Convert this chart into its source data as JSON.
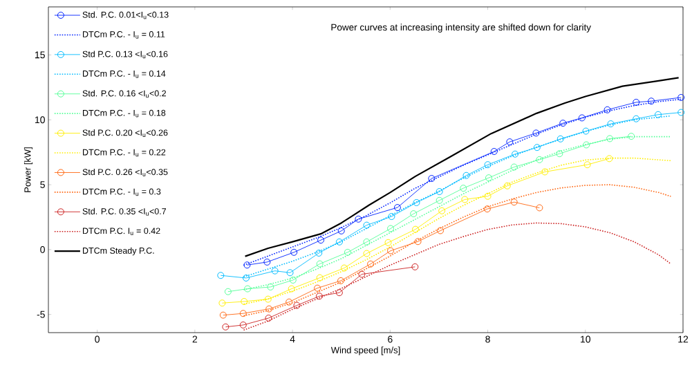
{
  "chart_data": {
    "type": "line",
    "xlabel": "Wind speed [m/s]",
    "ylabel": "Power [kW]",
    "annotations": [
      "Power curves at increasing intensity are shifted down for clarity"
    ],
    "xlim": [
      -1,
      12
    ],
    "ylim": [
      -6.4,
      18.7
    ],
    "xticks": [
      0,
      2,
      4,
      6,
      8,
      10,
      12
    ],
    "yticks": [
      -5,
      0,
      5,
      10,
      15
    ],
    "grid": false,
    "legend": "top left",
    "series": [
      {
        "name": "Std. P.C. 0.01<I$_{u}$<0.13",
        "color": "#0022ff",
        "marker": "circle",
        "line_style": "solid",
        "x": [
          3.07,
          3.48,
          4.03,
          4.58,
          5.0,
          5.35,
          6.15,
          6.85,
          8.13,
          8.45,
          8.99,
          9.54,
          9.93,
          10.45,
          11.04,
          11.35,
          11.96
        ],
        "values": [
          -1.19,
          -0.96,
          -0.21,
          0.73,
          1.44,
          2.35,
          3.24,
          5.48,
          7.56,
          8.3,
          8.98,
          9.74,
          10.15,
          10.77,
          11.35,
          11.44,
          11.72
        ]
      },
      {
        "name": "DTCm P.C. - I$_{u}$ = 0.11",
        "color": "#0022ff",
        "marker": "none",
        "line_style": "dotted",
        "x": [
          3,
          3.5,
          4,
          4.5,
          5,
          5.5,
          6,
          6.5,
          7,
          7.5,
          8,
          8.5,
          9,
          9.5,
          10,
          10.5,
          11,
          11.5,
          12
        ],
        "values": [
          -1.2,
          -0.5,
          0.2,
          0.9,
          1.7,
          2.6,
          3.6,
          4.7,
          5.6,
          6.5,
          7.3,
          8.1,
          8.9,
          9.6,
          10.2,
          10.7,
          11.1,
          11.4,
          11.6
        ]
      },
      {
        "name": "Std P.C. 0.13 <I$_{u}$<0.16",
        "color": "#00bbff",
        "marker": "circle",
        "line_style": "solid",
        "x": [
          2.53,
          3.05,
          3.64,
          3.95,
          4.54,
          4.96,
          5.52,
          6.03,
          6.54,
          7.01,
          7.56,
          8.0,
          8.56,
          9.01,
          9.49,
          10.01,
          10.52,
          11.04,
          11.49,
          11.96
        ],
        "values": [
          -1.99,
          -2.19,
          -1.64,
          -1.78,
          -0.27,
          0.59,
          1.88,
          2.55,
          3.62,
          4.47,
          5.71,
          6.54,
          7.36,
          7.87,
          8.53,
          9.13,
          9.69,
          10.08,
          10.4,
          10.57
        ]
      },
      {
        "name": "DTCm P.C. - I$_{u}$ = 0.14",
        "color": "#00bbff",
        "marker": "none",
        "line_style": "dotted",
        "x": [
          3,
          3.5,
          4,
          4.5,
          5,
          5.5,
          6,
          6.5,
          7,
          7.5,
          8,
          8.5,
          9,
          9.5,
          10,
          10.5,
          11,
          11.75
        ],
        "values": [
          -2.1,
          -1.5,
          -0.9,
          -0.2,
          0.6,
          1.6,
          2.6,
          3.6,
          4.5,
          5.5,
          6.4,
          7.2,
          7.9,
          8.5,
          9.1,
          9.6,
          10.0,
          10.3
        ]
      },
      {
        "name": "Std. P.C. 0.16 <I$_{u}$<0.2",
        "color": "#55ff99",
        "marker": "circle",
        "line_style": "solid",
        "x": [
          2.68,
          3.08,
          3.55,
          4.01,
          4.56,
          5.13,
          5.52,
          6.01,
          6.48,
          7.01,
          7.5,
          8.02,
          8.54,
          9.06,
          9.47,
          10.02,
          10.5,
          10.94
        ],
        "values": [
          -3.24,
          -3.02,
          -2.88,
          -2.35,
          -1.1,
          -0.21,
          0.59,
          1.62,
          2.76,
          3.79,
          4.73,
          5.53,
          6.36,
          6.93,
          7.39,
          8.07,
          8.55,
          8.73
        ]
      },
      {
        "name": "DTCm P.C. - I$_{u}$ = 0.18",
        "color": "#55ff99",
        "marker": "none",
        "line_style": "dotted",
        "x": [
          3,
          3.5,
          4,
          4.5,
          5,
          5.5,
          6,
          6.5,
          7,
          7.5,
          8,
          8.5,
          9,
          9.5,
          10,
          10.5,
          11,
          11.75
        ],
        "values": [
          -3.1,
          -2.7,
          -2.2,
          -1.5,
          -0.7,
          0.3,
          1.3,
          2.3,
          3.3,
          4.3,
          5.2,
          6.1,
          6.9,
          7.6,
          8.1,
          8.5,
          8.7,
          8.7
        ]
      },
      {
        "name": "Std P.C. 0.20 <I$_{u}$<0.26",
        "color": "#ffee00",
        "marker": "circle",
        "line_style": "solid",
        "x": [
          2.56,
          3.01,
          3.5,
          3.98,
          4.56,
          5.06,
          5.52,
          5.96,
          6.52,
          7.06,
          7.53,
          8.0,
          8.4,
          9.17,
          10.04,
          10.49
        ],
        "values": [
          -4.12,
          -4.0,
          -3.82,
          -3.02,
          -2.17,
          -1.42,
          -0.3,
          0.54,
          1.56,
          2.99,
          3.86,
          4.11,
          4.91,
          5.99,
          6.54,
          7.01
        ]
      },
      {
        "name": "DTCm P.C. - I$_{u}$ = 0.22",
        "color": "#ffee00",
        "marker": "none",
        "line_style": "dotted",
        "x": [
          3,
          3.5,
          4,
          4.5,
          5,
          5.5,
          6,
          6.5,
          7,
          7.5,
          8,
          8.5,
          9,
          9.5,
          10,
          10.5,
          11,
          11.75
        ],
        "values": [
          -4.2,
          -3.8,
          -3.2,
          -2.5,
          -1.7,
          -0.8,
          0.2,
          1.3,
          2.4,
          3.4,
          4.3,
          5.2,
          5.9,
          6.5,
          6.9,
          7.05,
          7.05,
          6.85
        ]
      },
      {
        "name": "Std P.C. 0.26 <I$_{u}$<0.35",
        "color": "#ff6611",
        "marker": "circle",
        "line_style": "solid",
        "x": [
          2.58,
          2.99,
          3.52,
          3.93,
          4.51,
          4.99,
          5.6,
          6.01,
          6.57,
          7.03,
          7.99,
          8.54,
          9.06
        ],
        "values": [
          -5.05,
          -4.92,
          -4.57,
          -4.04,
          -2.97,
          -2.4,
          -1.11,
          -0.09,
          0.62,
          1.46,
          3.13,
          3.66,
          3.22
        ]
      },
      {
        "name": "DTCm P.C. - I$_{u}$ = 0.3",
        "color": "#ff6611",
        "marker": "none",
        "line_style": "dotted",
        "x": [
          3,
          3.5,
          4,
          4.5,
          5,
          5.5,
          6,
          6.5,
          7,
          7.5,
          8,
          8.5,
          9,
          9.5,
          10,
          10.5,
          11,
          11.5,
          11.75
        ],
        "values": [
          -5.1,
          -4.7,
          -4.1,
          -3.3,
          -2.5,
          -1.5,
          -0.5,
          0.6,
          1.6,
          2.5,
          3.3,
          3.9,
          4.4,
          4.75,
          4.95,
          5.0,
          4.8,
          4.4,
          4.1
        ]
      },
      {
        "name": "Std. P.C. 0.35 <I$_{u}$<0.7",
        "color": "#cc2222",
        "marker": "circle",
        "line_style": "solid",
        "x": [
          2.63,
          2.99,
          3.51,
          4.09,
          4.55,
          4.96,
          5.42,
          6.51
        ],
        "values": [
          -5.96,
          -5.81,
          -5.28,
          -4.3,
          -3.59,
          -3.32,
          -1.9,
          -1.33
        ]
      },
      {
        "name": "DTCm P.C.  I$_{u}$ = 0.42",
        "color": "#cc2222",
        "marker": "none",
        "line_style": "dotted",
        "x": [
          3,
          3.5,
          4,
          4.5,
          5,
          5.5,
          6,
          6.5,
          7,
          7.5,
          8,
          8.5,
          9,
          9.5,
          10,
          10.5,
          11,
          11.5,
          11.75
        ],
        "values": [
          -6.2,
          -5.5,
          -4.6,
          -3.8,
          -3.0,
          -2.1,
          -1.2,
          -0.4,
          0.4,
          1.0,
          1.55,
          1.9,
          2.05,
          2.0,
          1.75,
          1.3,
          0.6,
          -0.4,
          -1.1
        ]
      },
      {
        "name": "DTCm  Steady P.C.",
        "color": "#000000",
        "marker": "none",
        "line_style": "solid",
        "x": [
          3.03,
          3.5,
          4,
          4.58,
          5,
          5.57,
          6,
          6.52,
          7.2,
          8.07,
          9,
          9.58,
          10,
          10.76,
          11.5,
          11.91
        ],
        "values": [
          -0.52,
          0.1,
          0.6,
          1.21,
          2.05,
          3.43,
          4.4,
          5.65,
          7.08,
          8.94,
          10.5,
          11.29,
          11.8,
          12.59,
          13.0,
          13.24
        ]
      }
    ]
  }
}
